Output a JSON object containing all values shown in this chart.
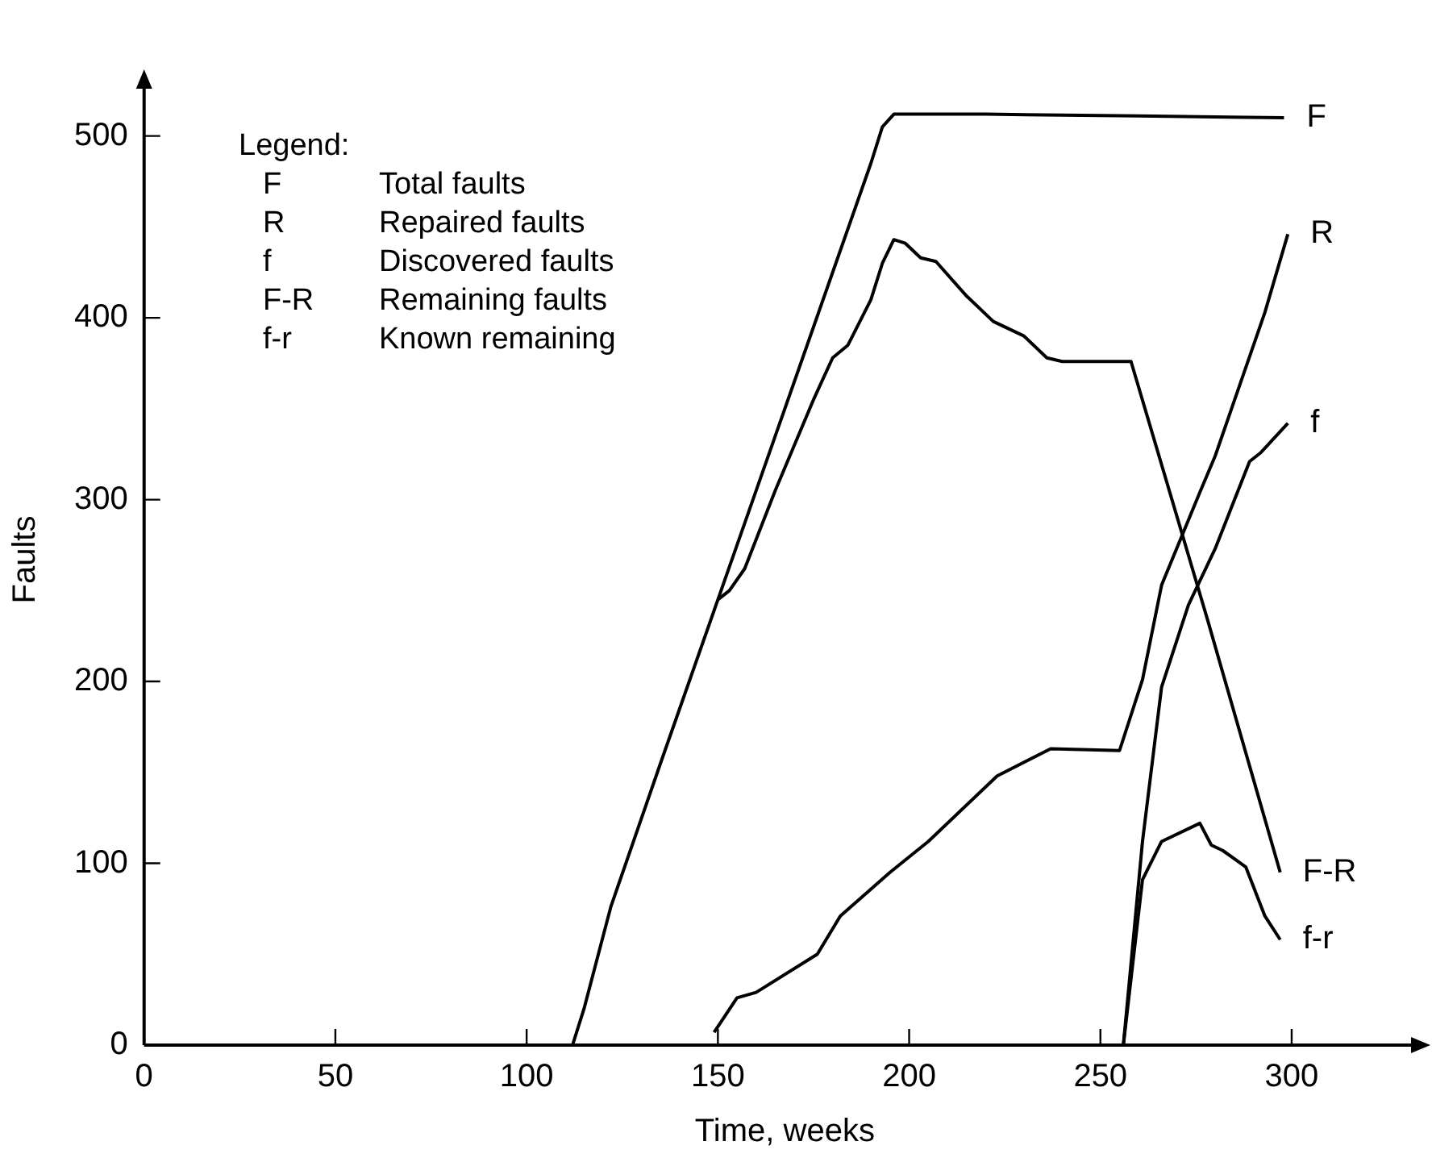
{
  "chart_data": {
    "type": "line",
    "xlabel": "Time, weeks",
    "ylabel": "Faults",
    "xlim": [
      0,
      335
    ],
    "xticks": [
      0,
      50,
      100,
      150,
      200,
      250,
      300
    ],
    "ylim": [
      0,
      534
    ],
    "yticks": [
      0,
      100,
      200,
      300,
      400,
      500
    ],
    "grid": false,
    "legend": false,
    "marker": "none",
    "line_style": "solid",
    "annotations": [
      "Legend:",
      "F\tTotal faults",
      "R\tRepaired faults",
      "f\tDiscovered faults",
      "F-R\tRemaining faults",
      "f-r\tKnown remaining"
    ],
    "series": [
      {
        "name": "F",
        "color": "#000000",
        "x": [
          112,
          115,
          119,
          122,
          135,
          150,
          165,
          180,
          190,
          193,
          196,
          220,
          260,
          298
        ],
        "values": [
          0,
          20,
          52,
          76,
          155,
          245,
          335,
          425,
          485,
          505,
          512,
          512,
          511,
          510
        ]
      },
      {
        "name": "R",
        "color": "#000000",
        "x": [
          149,
          155,
          160,
          176,
          182,
          195,
          205,
          223,
          237,
          255,
          261,
          266,
          276,
          280,
          293,
          299
        ],
        "values": [
          7,
          26,
          29,
          50,
          71,
          95,
          112,
          148,
          163,
          162,
          201,
          253,
          304,
          324,
          403,
          446
        ]
      },
      {
        "name": "f",
        "color": "#000000",
        "x": [
          256,
          261,
          266,
          273,
          280,
          289,
          292,
          299
        ],
        "values": [
          0,
          112,
          197,
          242,
          273,
          321,
          326,
          342
        ]
      },
      {
        "name": "F-R",
        "color": "#000000",
        "x": [
          150,
          153,
          157,
          165,
          175,
          180,
          184,
          190,
          193,
          196,
          199,
          203,
          207,
          215,
          222,
          227,
          230,
          236,
          240,
          258,
          278,
          297
        ],
        "values": [
          245,
          250,
          262,
          305,
          355,
          378,
          385,
          410,
          430,
          443,
          441,
          433,
          431,
          412,
          398,
          393,
          390,
          378,
          376,
          376,
          234,
          95
        ]
      },
      {
        "name": "f-r",
        "color": "#000000",
        "x": [
          256,
          261,
          266,
          276,
          279,
          282,
          288,
          293,
          297
        ],
        "values": [
          0,
          91,
          112,
          122,
          110,
          107,
          98,
          71,
          58
        ]
      }
    ]
  }
}
